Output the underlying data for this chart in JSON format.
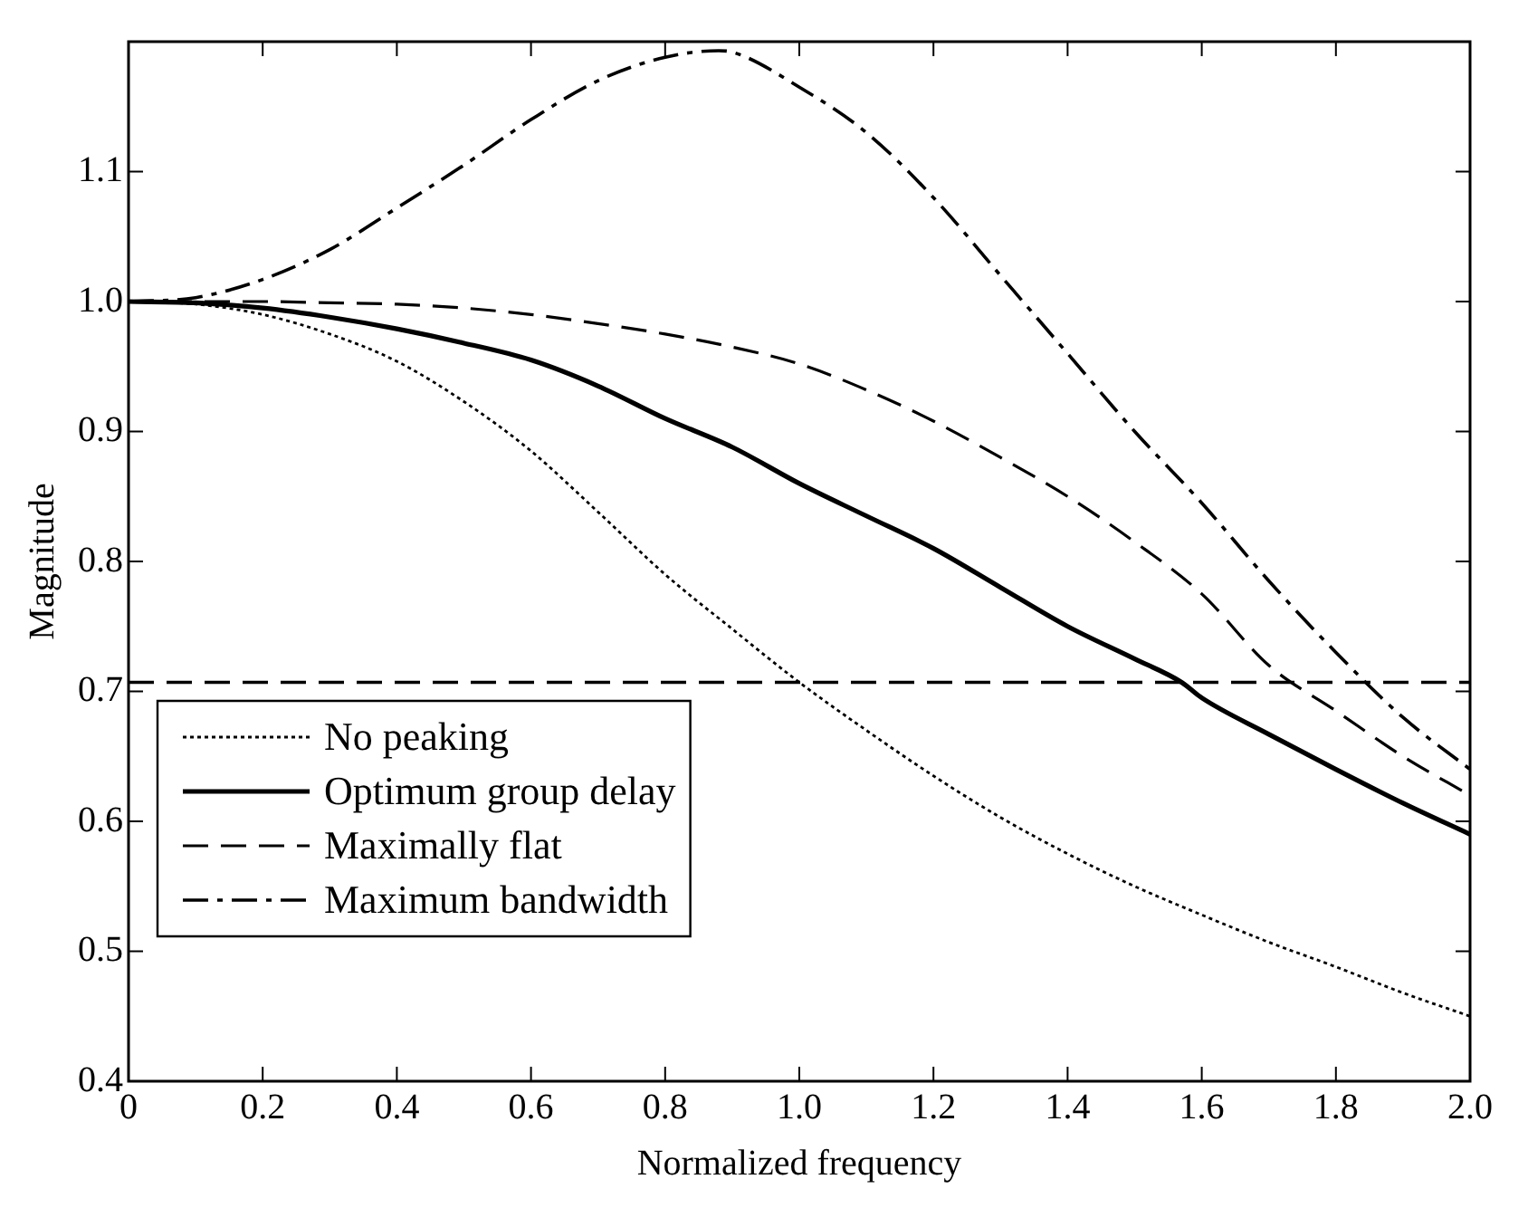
{
  "chart_data": {
    "type": "line",
    "xlabel": "Normalized frequency",
    "ylabel": "Magnitude",
    "xlim": [
      0,
      2
    ],
    "xticks": [
      {
        "value": 0,
        "label": "0"
      },
      0.2,
      0.4,
      0.6,
      0.8,
      {
        "value": 1,
        "label": "1.0"
      },
      1.2,
      1.4,
      1.6,
      1.8,
      {
        "value": 2,
        "label": "2.0"
      }
    ],
    "ylim": [
      0.4,
      1.2
    ],
    "yticks": [
      0.4,
      0.5,
      0.6,
      0.7,
      0.8,
      0.9,
      {
        "value": 1,
        "label": "1.0"
      },
      1.1,
      {
        "value": 1.2,
        "label": null
      }
    ],
    "grid": false,
    "legend": "bottom left",
    "marker": "none",
    "series": [
      {
        "name": "No peaking",
        "color": "#000000",
        "line_style": "dotted",
        "x": [
          0,
          0.1,
          0.2,
          0.3,
          0.4,
          0.5,
          0.6,
          0.7,
          0.8,
          0.9,
          1.0,
          1.1,
          1.2,
          1.3,
          1.4,
          1.5,
          1.6,
          1.7,
          1.8,
          1.9,
          2.0
        ],
        "values": [
          1,
          0.998,
          0.99,
          0.975,
          0.954,
          0.923,
          0.885,
          0.838,
          0.79,
          0.748,
          0.707,
          0.67,
          0.635,
          0.603,
          0.575,
          0.55,
          0.528,
          0.507,
          0.488,
          0.468,
          0.45
        ]
      },
      {
        "name": "Optimum group delay",
        "color": "#000000",
        "line_style": "solid",
        "x": [
          0,
          0.1,
          0.2,
          0.3,
          0.4,
          0.5,
          0.6,
          0.7,
          0.8,
          0.9,
          1.0,
          1.1,
          1.2,
          1.3,
          1.4,
          1.5,
          1.57,
          1.6,
          1.7,
          1.8,
          1.9,
          2.0
        ],
        "values": [
          1,
          0.999,
          0.995,
          0.988,
          0.979,
          0.968,
          0.955,
          0.935,
          0.91,
          0.888,
          0.86,
          0.835,
          0.81,
          0.78,
          0.75,
          0.725,
          0.707,
          0.695,
          0.667,
          0.64,
          0.614,
          0.59
        ]
      },
      {
        "name": "Maximally flat",
        "color": "#000000",
        "line_style": "dashed",
        "x": [
          0,
          0.1,
          0.2,
          0.3,
          0.4,
          0.5,
          0.6,
          0.7,
          0.8,
          0.9,
          1.0,
          1.1,
          1.2,
          1.3,
          1.4,
          1.5,
          1.6,
          1.7,
          1.8,
          1.9,
          2.0
        ],
        "values": [
          1,
          1,
          1,
          0.999,
          0.998,
          0.995,
          0.99,
          0.983,
          0.975,
          0.965,
          0.952,
          0.932,
          0.908,
          0.88,
          0.85,
          0.815,
          0.775,
          0.72,
          0.685,
          0.65,
          0.62
        ]
      },
      {
        "name": "Maximum bandwidth",
        "color": "#000000",
        "line_style": "dashdot",
        "x": [
          0,
          0.1,
          0.2,
          0.3,
          0.4,
          0.5,
          0.6,
          0.7,
          0.8,
          0.88,
          0.9,
          1.0,
          1.1,
          1.2,
          1.3,
          1.4,
          1.5,
          1.6,
          1.7,
          1.8,
          1.9,
          2.0
        ],
        "values": [
          1,
          1.003,
          1.017,
          1.04,
          1.072,
          1.105,
          1.14,
          1.17,
          1.188,
          1.193,
          1.192,
          1.165,
          1.13,
          1.08,
          1.02,
          0.96,
          0.9,
          0.845,
          0.785,
          0.73,
          0.68,
          0.64
        ]
      }
    ],
    "ref_lines": [
      {
        "axis": "y",
        "value": 0.707,
        "color": "#000000",
        "line_style": "dashed"
      }
    ]
  }
}
